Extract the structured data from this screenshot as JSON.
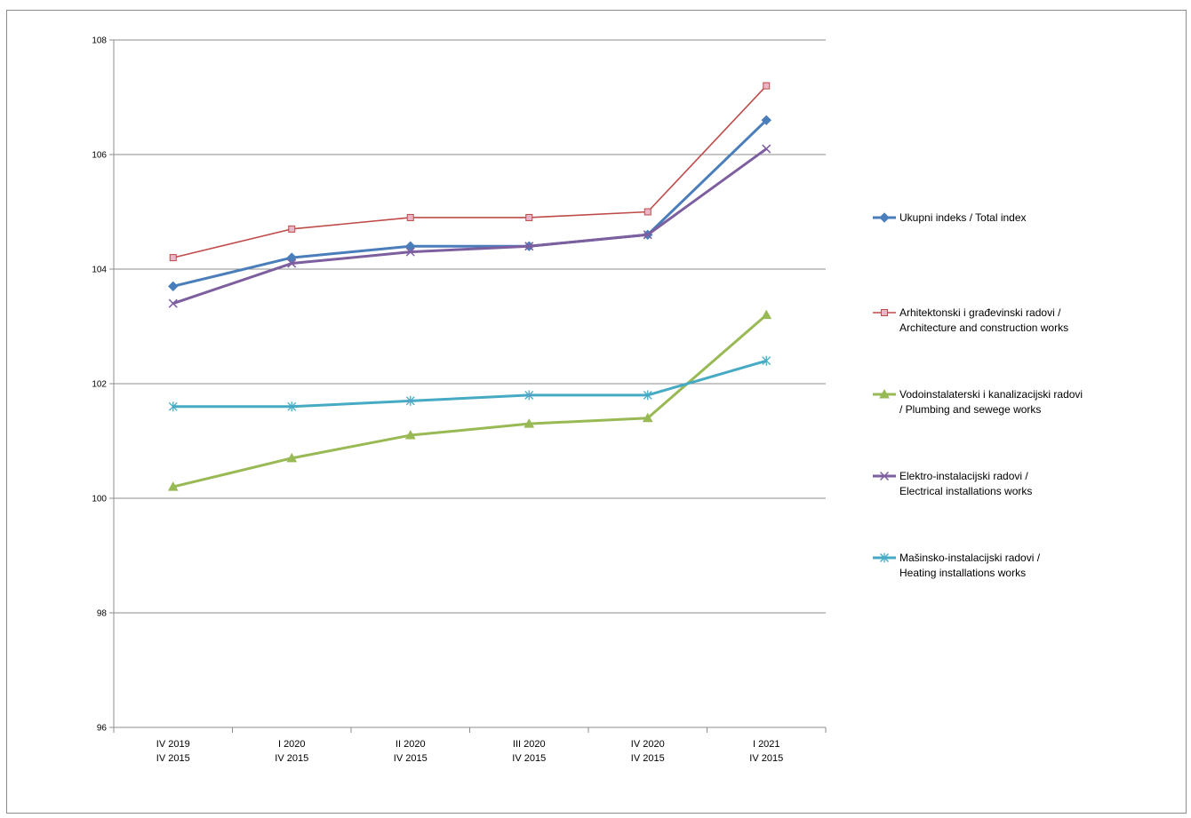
{
  "chart_data": {
    "type": "line",
    "categories": [
      [
        "IV 2019",
        "IV 2015"
      ],
      [
        "I 2020",
        "IV 2015"
      ],
      [
        "II 2020",
        "IV 2015"
      ],
      [
        "III 2020",
        "IV 2015"
      ],
      [
        "IV 2020",
        "IV 2015"
      ],
      [
        "I 2021",
        "IV 2015"
      ]
    ],
    "ylim": [
      96,
      108
    ],
    "yticks": [
      96,
      98,
      100,
      102,
      104,
      106,
      108
    ],
    "grid": true,
    "legend_position": "right",
    "series": [
      {
        "name_lines": [
          "Ukupni indeks / Total index"
        ],
        "values": [
          103.7,
          104.2,
          104.4,
          104.4,
          104.6,
          106.6
        ],
        "color": "#4a7ebb",
        "marker": "diamond"
      },
      {
        "name_lines": [
          "Arhitektonski i građevinski radovi /",
          "Architecture  and construction works"
        ],
        "values": [
          104.2,
          104.7,
          104.9,
          104.9,
          105.0,
          107.2
        ],
        "color": "#be4b48",
        "marker": "square-open"
      },
      {
        "name_lines": [
          "Vodoinstalaterski i kanalizacijski radovi",
          "/ Plumbing and sewege works"
        ],
        "values": [
          100.2,
          100.7,
          101.1,
          101.3,
          101.4,
          103.2
        ],
        "color": "#98b954",
        "marker": "triangle"
      },
      {
        "name_lines": [
          "Elektro-instalacijski radovi /",
          "Electrical installations works"
        ],
        "values": [
          103.4,
          104.1,
          104.3,
          104.4,
          104.6,
          106.1
        ],
        "color": "#7d5fa0",
        "marker": "x"
      },
      {
        "name_lines": [
          "Mašinsko-instalacijski radovi /",
          "Heating installations works"
        ],
        "values": [
          101.6,
          101.6,
          101.7,
          101.8,
          101.8,
          102.4
        ],
        "color": "#46aac5",
        "marker": "asterisk"
      }
    ]
  }
}
